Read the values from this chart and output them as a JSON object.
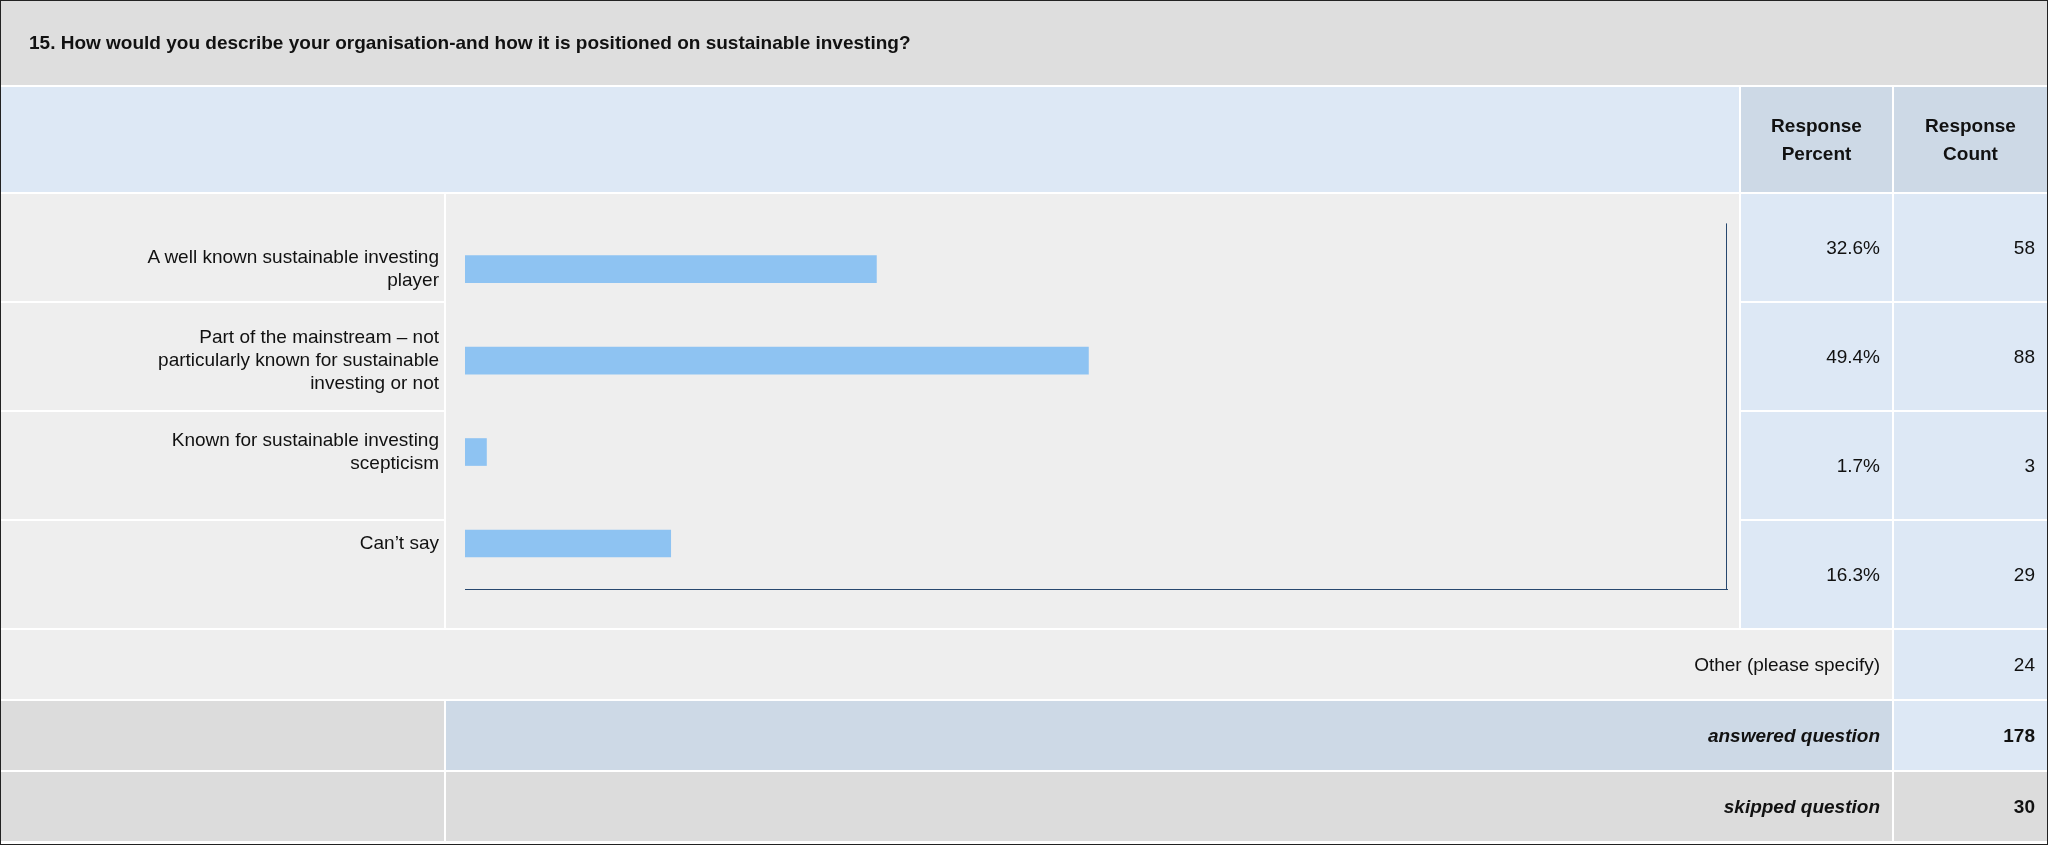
{
  "chart_data": {
    "type": "bar",
    "orientation": "horizontal",
    "title": "15. How would you describe your organisation-and how it is positioned on sustainable investing?",
    "categories": [
      "A well known sustainable investing player",
      "Part of the mainstream – not particularly known for sustainable investing or not",
      "Known for sustainable investing scepticism",
      "Can’t say"
    ],
    "values": [
      32.6,
      49.4,
      1.7,
      16.3
    ],
    "value_labels": [
      "32.6%",
      "49.4%",
      "1.7%",
      "16.3%"
    ],
    "color": "#8ec3f2",
    "xlim": [
      0,
      100
    ],
    "tick_labels": false,
    "legend": false,
    "annotations": [
      "Response Percent",
      "Response Count",
      "58",
      "88",
      "3",
      "29",
      "Other (please specify)",
      "24",
      "answered question",
      "178",
      "skipped question",
      "30"
    ]
  }
}
